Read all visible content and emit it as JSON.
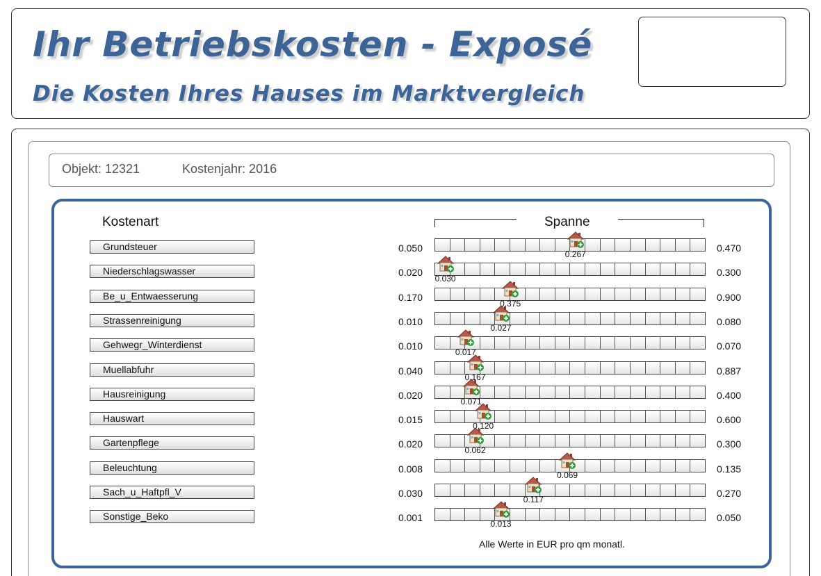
{
  "header": {
    "title": "Ihr Betriebskosten - Exposé",
    "subtitle": "Die Kosten Ihres Hauses im Marktvergleich"
  },
  "info": {
    "objekt": "Objekt: 12321",
    "kostenjahr": "Kostenjahr: 2016"
  },
  "table": {
    "col_kostenart": "Kostenart",
    "col_spanne": "Spanne",
    "scale_segments": 18,
    "marker_icon": "house-plus-icon",
    "footnote": "Alle Werte in EUR pro qm monatl.",
    "rows": [
      {
        "label": "Grundsteuer",
        "min": "0.050",
        "max": "0.470",
        "value": "0.267",
        "position": 0.52
      },
      {
        "label": "Niederschlagswasser",
        "min": "0.020",
        "max": "0.300",
        "value": "0.030",
        "position": 0.04
      },
      {
        "label": "Be_u_Entwaesserung",
        "min": "0.170",
        "max": "0.900",
        "value": "0.375",
        "position": 0.28
      },
      {
        "label": "Strassenreinigung",
        "min": "0.010",
        "max": "0.080",
        "value": "0.027",
        "position": 0.245
      },
      {
        "label": "Gehwegr_Winterdienst",
        "min": "0.010",
        "max": "0.070",
        "value": "0.017",
        "position": 0.115
      },
      {
        "label": "Muellabfuhr",
        "min": "0.040",
        "max": "0.887",
        "value": "0.167",
        "position": 0.15
      },
      {
        "label": "Hausreinigung",
        "min": "0.020",
        "max": "0.400",
        "value": "0.071",
        "position": 0.135
      },
      {
        "label": "Hauswart",
        "min": "0.015",
        "max": "0.600",
        "value": "0.120",
        "position": 0.18
      },
      {
        "label": "Gartenpflege",
        "min": "0.020",
        "max": "0.300",
        "value": "0.062",
        "position": 0.15
      },
      {
        "label": "Beleuchtung",
        "min": "0.008",
        "max": "0.135",
        "value": "0.069",
        "position": 0.49
      },
      {
        "label": "Sach_u_Haftpfl_V",
        "min": "0.030",
        "max": "0.270",
        "value": "0.117",
        "position": 0.365
      },
      {
        "label": "Sonstige_Beko",
        "min": "0.001",
        "max": "0.050",
        "value": "0.013",
        "position": 0.245
      }
    ]
  }
}
